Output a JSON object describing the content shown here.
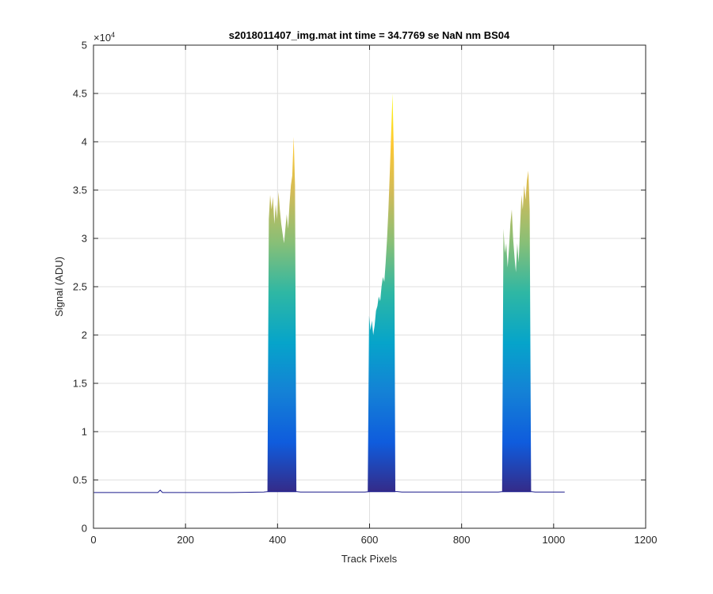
{
  "chart_data": {
    "type": "area",
    "title": "s2018011407_img.mat int time = 34.7769 se  NaN nm BS04",
    "xlabel": "Track Pixels",
    "ylabel": "Signal (ADU)",
    "y_exponent_label": "×10",
    "y_exponent_power": "4",
    "xlim": [
      0,
      1200
    ],
    "ylim": [
      0,
      50000
    ],
    "x_ticks": [
      0,
      200,
      400,
      600,
      800,
      1000,
      1200
    ],
    "y_ticks": [
      0,
      5000,
      10000,
      15000,
      20000,
      25000,
      30000,
      35000,
      40000,
      45000,
      50000
    ],
    "x_tick_labels": [
      "0",
      "200",
      "400",
      "600",
      "800",
      "1000",
      "1200"
    ],
    "y_tick_labels": [
      "0",
      "0.5",
      "1",
      "1.5",
      "2",
      "2.5",
      "3",
      "3.5",
      "4",
      "4.5",
      "5"
    ],
    "grid": true,
    "colormap": [
      "#352a87",
      "#0f5cdd",
      "#1481d6",
      "#06a4ca",
      "#2eb7a4",
      "#87bf77",
      "#d1bb59",
      "#fec832",
      "#f9fb0e"
    ],
    "baseline_color": "#1b1b8c",
    "baseline": {
      "x": [
        1,
        100,
        140,
        145,
        150,
        300,
        370,
        380,
        440,
        450,
        590,
        600,
        660,
        670,
        880,
        890,
        950,
        960,
        1024
      ],
      "y": [
        3700,
        3700,
        3700,
        3950,
        3700,
        3700,
        3750,
        3800,
        3800,
        3750,
        3750,
        3800,
        3800,
        3750,
        3750,
        3800,
        3800,
        3750,
        3750
      ]
    },
    "series": [
      {
        "x": [
          378,
          381,
          384,
          387,
          390,
          393,
          396,
          399,
          402,
          405,
          408,
          411,
          414,
          417,
          420,
          423,
          426,
          429,
          432,
          435,
          438,
          441
        ],
        "y": [
          4000,
          32000,
          34500,
          33000,
          34300,
          31500,
          33500,
          32000,
          34800,
          33000,
          31500,
          30500,
          29500,
          31000,
          32500,
          31000,
          33500,
          35500,
          36500,
          40500,
          35500,
          4000
        ]
      },
      {
        "x": [
          596,
          599,
          602,
          605,
          608,
          611,
          614,
          617,
          620,
          623,
          626,
          629,
          632,
          635,
          638,
          641,
          644,
          647,
          650,
          653,
          656
        ],
        "y": [
          4000,
          22000,
          20500,
          21500,
          20000,
          21000,
          22500,
          23000,
          24000,
          23500,
          25000,
          26000,
          25500,
          27500,
          30000,
          33000,
          37000,
          41000,
          45000,
          38000,
          4000
        ]
      },
      {
        "x": [
          888,
          891,
          894,
          897,
          900,
          903,
          906,
          909,
          912,
          915,
          918,
          921,
          924,
          927,
          930,
          933,
          936,
          939,
          942,
          945,
          948,
          951
        ],
        "y": [
          4000,
          31000,
          28500,
          29500,
          27000,
          29000,
          31500,
          33000,
          30000,
          28000,
          26500,
          29500,
          27500,
          31000,
          34500,
          33000,
          35500,
          34000,
          36000,
          37000,
          33000,
          4000
        ]
      }
    ]
  }
}
